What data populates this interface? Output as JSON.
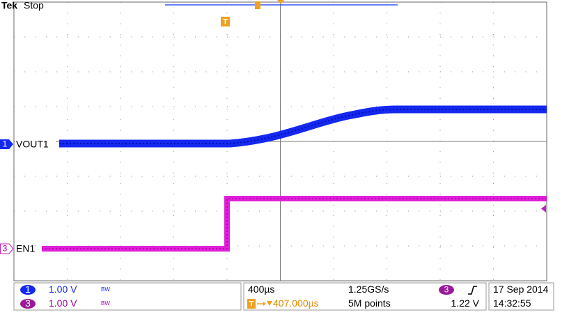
{
  "header": {
    "brand": "Tek",
    "status": "Stop"
  },
  "markers": {
    "trigger": "T",
    "channel1": "1",
    "channel3": "3"
  },
  "traces": {
    "ch1_label": "VOUT1",
    "ch3_label": "EN1"
  },
  "readout": {
    "ch1": {
      "number": "1",
      "scale": "1.00 V",
      "bw": "BW"
    },
    "ch3": {
      "number": "3",
      "scale": "1.00 V",
      "bw": "BW"
    },
    "timebase": "400µs",
    "sample_rate": "1.25GS/s",
    "trigger_icon": "T",
    "trigger_position": "407.000µs",
    "record_length": "5M points",
    "trigger_source": "3",
    "trigger_level": "1.22 V",
    "date": "17 Sep 2014",
    "time": "14:32:55"
  }
}
